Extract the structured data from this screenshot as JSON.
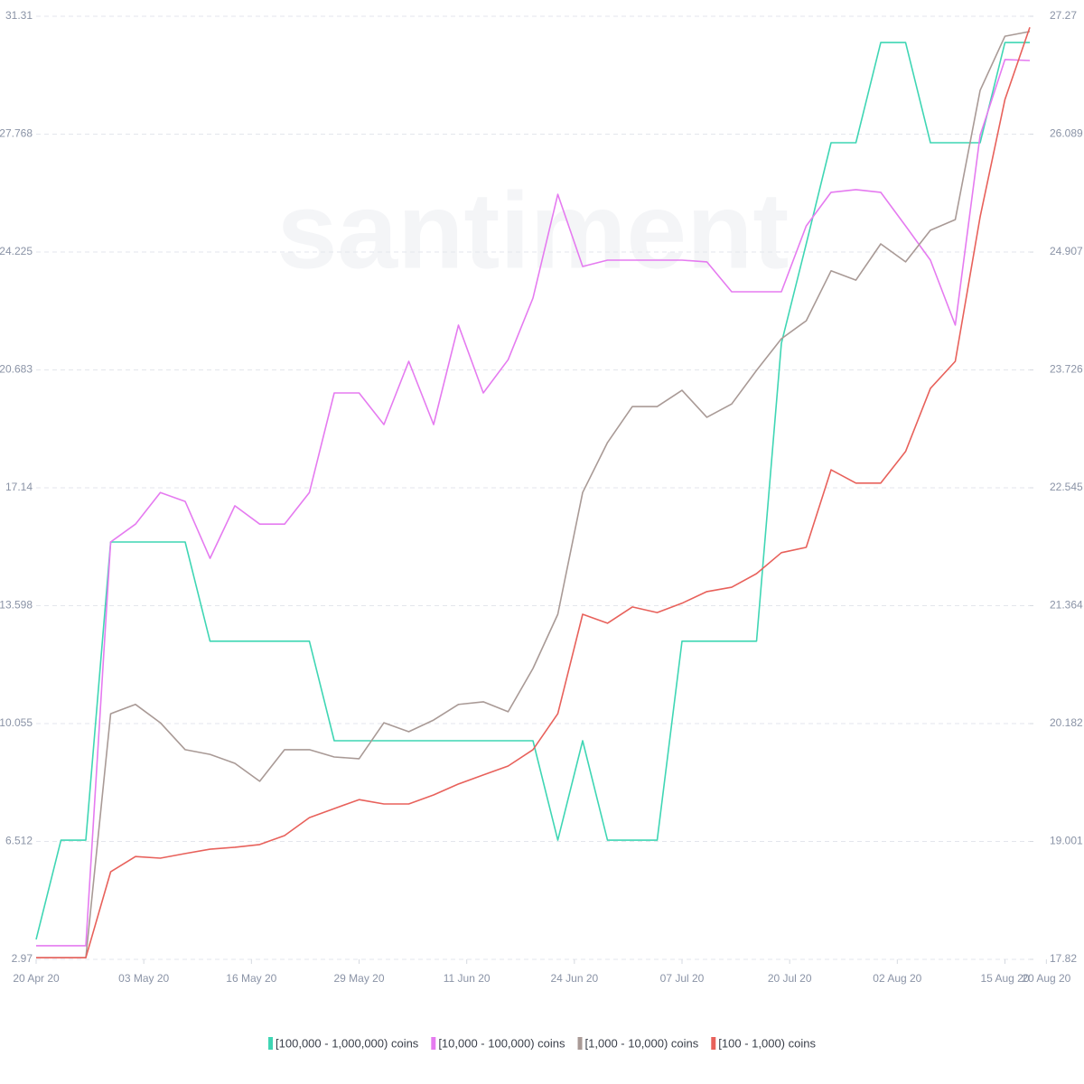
{
  "chart_data": {
    "type": "line",
    "watermark": "santiment",
    "x": [
      "2020-04-20",
      "2020-04-23",
      "2020-04-26",
      "2020-04-29",
      "2020-05-02",
      "2020-05-05",
      "2020-05-08",
      "2020-05-11",
      "2020-05-14",
      "2020-05-17",
      "2020-05-20",
      "2020-05-23",
      "2020-05-26",
      "2020-05-29",
      "2020-06-01",
      "2020-06-04",
      "2020-06-07",
      "2020-06-10",
      "2020-06-13",
      "2020-06-16",
      "2020-06-19",
      "2020-06-22",
      "2020-06-25",
      "2020-06-28",
      "2020-07-01",
      "2020-07-04",
      "2020-07-07",
      "2020-07-10",
      "2020-07-13",
      "2020-07-16",
      "2020-07-19",
      "2020-07-22",
      "2020-07-25",
      "2020-07-28",
      "2020-07-31",
      "2020-08-03",
      "2020-08-06",
      "2020-08-09",
      "2020-08-12",
      "2020-08-15",
      "2020-08-18"
    ],
    "xlim": [
      "2020-04-20",
      "2020-08-18"
    ],
    "xticks": [
      {
        "value": "2020-04-20",
        "label": "20 Apr 20"
      },
      {
        "value": "2020-05-03",
        "label": "03 May 20"
      },
      {
        "value": "2020-05-16",
        "label": "16 May 20"
      },
      {
        "value": "2020-05-29",
        "label": "29 May 20"
      },
      {
        "value": "2020-06-11",
        "label": "11 Jun 20"
      },
      {
        "value": "2020-06-24",
        "label": "24 Jun 20"
      },
      {
        "value": "2020-07-07",
        "label": "07 Jul 20"
      },
      {
        "value": "2020-07-20",
        "label": "20 Jul 20"
      },
      {
        "value": "2020-08-02",
        "label": "02 Aug 20"
      },
      {
        "value": "2020-08-15",
        "label": "15 Aug 20"
      },
      {
        "value": "2020-08-20",
        "label": "20 Aug 20"
      }
    ],
    "ylim": [
      2.97,
      31.31
    ],
    "yticks": [
      2.97,
      6.512,
      10.055,
      13.598,
      17.14,
      20.683,
      24.225,
      27.768,
      31.31
    ],
    "y2lim": [
      17.82,
      27.27
    ],
    "y2ticks": [
      17.82,
      19.001,
      20.182,
      21.364,
      22.545,
      23.726,
      24.907,
      26.089,
      27.27
    ],
    "grid": true,
    "legend": "bottom",
    "series": [
      {
        "name": "[100,000 - 1,000,000) coins",
        "color": "#3fd6b4",
        "values": [
          3.57,
          6.55,
          6.55,
          15.51,
          15.51,
          15.51,
          15.51,
          12.53,
          12.53,
          12.53,
          12.53,
          12.53,
          9.54,
          9.54,
          9.54,
          9.54,
          9.54,
          9.54,
          9.54,
          9.54,
          9.54,
          6.55,
          9.54,
          6.55,
          6.55,
          6.55,
          12.53,
          12.53,
          12.53,
          12.53,
          21.48,
          24.47,
          27.51,
          27.51,
          30.52,
          30.52,
          27.51,
          27.51,
          27.51,
          30.52,
          30.52
        ]
      },
      {
        "name": "[10,000 - 100,000) coins",
        "color": "#e57bf0",
        "values": [
          3.38,
          3.38,
          3.38,
          15.51,
          16.05,
          17.0,
          16.73,
          15.02,
          16.6,
          16.05,
          16.05,
          17.0,
          19.99,
          19.99,
          19.04,
          20.94,
          19.04,
          22.03,
          19.99,
          20.99,
          22.84,
          25.96,
          23.79,
          23.98,
          23.98,
          23.98,
          23.98,
          23.93,
          23.03,
          23.03,
          23.03,
          25.01,
          26.02,
          26.1,
          26.02,
          25.01,
          23.98,
          22.03,
          27.73,
          30.01,
          29.98
        ]
      },
      {
        "name": "[1,000 - 10,000) coins",
        "color": "#a99a96",
        "values": [
          3.02,
          3.02,
          3.02,
          10.35,
          10.63,
          10.08,
          9.27,
          9.13,
          8.86,
          8.32,
          9.27,
          9.27,
          9.05,
          9.0,
          10.08,
          9.81,
          10.16,
          10.63,
          10.71,
          10.41,
          11.71,
          13.34,
          17.0,
          18.5,
          19.58,
          19.58,
          20.07,
          19.26,
          19.66,
          20.67,
          21.62,
          22.16,
          23.66,
          23.38,
          24.47,
          23.93,
          24.88,
          25.2,
          29.08,
          30.71,
          30.85
        ]
      },
      {
        "name": "[100 - 1,000) coins",
        "color": "#e8615b",
        "values": [
          3.02,
          3.02,
          3.02,
          5.6,
          6.06,
          6.01,
          6.15,
          6.28,
          6.34,
          6.42,
          6.69,
          7.23,
          7.5,
          7.77,
          7.64,
          7.64,
          7.91,
          8.24,
          8.51,
          8.78,
          9.27,
          10.35,
          13.34,
          13.07,
          13.56,
          13.39,
          13.67,
          14.02,
          14.15,
          14.56,
          15.19,
          15.35,
          17.68,
          17.28,
          17.28,
          18.23,
          20.13,
          20.94,
          25.28,
          28.81,
          30.98
        ]
      }
    ]
  }
}
